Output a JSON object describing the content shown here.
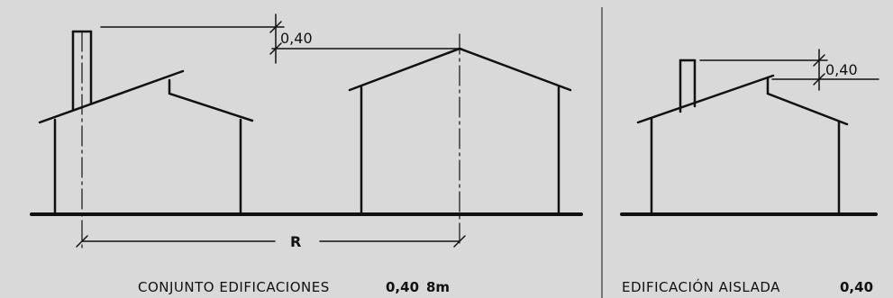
{
  "left_panel": {
    "dimension_label": "0,40",
    "distance_label": "R",
    "caption_text": "CONJUNTO EDIFICACIONES",
    "caption_height": "0,40",
    "caption_distance": "8m"
  },
  "right_panel": {
    "dimension_label": "0,40",
    "caption_text": "EDIFICACIÓN AISLADA",
    "caption_height": "0,40"
  },
  "colors": {
    "background": "#d9d9d9",
    "ink": "#111111"
  }
}
